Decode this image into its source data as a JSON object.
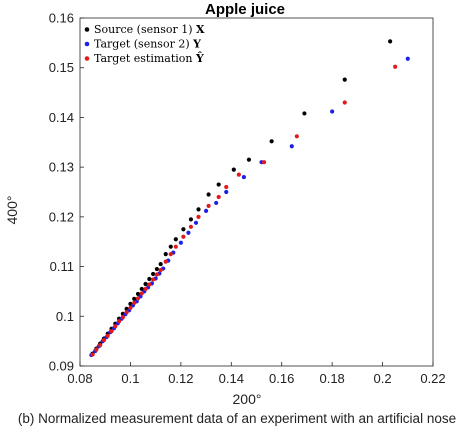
{
  "caption": "(b) Normalized measurement data of an experiment with an artificial nose",
  "chart_data": {
    "type": "scatter",
    "title": "Apple juice",
    "xlabel": "200°",
    "ylabel": "400°",
    "xlim": [
      0.08,
      0.22
    ],
    "ylim": [
      0.09,
      0.16
    ],
    "xticks": [
      "0.08",
      "0.1",
      "0.12",
      "0.14",
      "0.16",
      "0.18",
      "0.2",
      "0.22"
    ],
    "yticks": [
      "0.09",
      "0.1",
      "0.11",
      "0.12",
      "0.13",
      "0.14",
      "0.15",
      "0.16"
    ],
    "grid": false,
    "legend_position": "top-left",
    "series": [
      {
        "name": "Source (sensor 1) X",
        "label_prefix": "Source (sensor 1) ",
        "label_symbol": "X",
        "color": "#000000",
        "x": [
          0.085,
          0.0865,
          0.088,
          0.0895,
          0.091,
          0.0925,
          0.094,
          0.0955,
          0.097,
          0.0985,
          0.1,
          0.1015,
          0.103,
          0.1045,
          0.106,
          0.1075,
          0.109,
          0.1105,
          0.112,
          0.114,
          0.116,
          0.118,
          0.121,
          0.124,
          0.127,
          0.131,
          0.135,
          0.141,
          0.147,
          0.156,
          0.169,
          0.185,
          0.203
        ],
        "y": [
          0.0925,
          0.0935,
          0.0945,
          0.0955,
          0.0965,
          0.0975,
          0.0985,
          0.0995,
          0.1005,
          0.1015,
          0.1025,
          0.1035,
          0.1045,
          0.1055,
          0.1065,
          0.1075,
          0.1085,
          0.1095,
          0.1105,
          0.1125,
          0.114,
          0.1155,
          0.1175,
          0.1195,
          0.1215,
          0.1245,
          0.1265,
          0.1295,
          0.1315,
          0.1352,
          0.1408,
          0.1476,
          0.1553
        ]
      },
      {
        "name": "Target (sensor 2) Y",
        "label_prefix": "Target (sensor 2) ",
        "label_symbol": "Y",
        "color": "#1f1fe6",
        "x": [
          0.0845,
          0.086,
          0.0875,
          0.089,
          0.0905,
          0.092,
          0.0935,
          0.095,
          0.0965,
          0.098,
          0.0995,
          0.101,
          0.1025,
          0.104,
          0.1055,
          0.107,
          0.1085,
          0.11,
          0.1115,
          0.113,
          0.115,
          0.117,
          0.12,
          0.123,
          0.126,
          0.13,
          0.134,
          0.138,
          0.145,
          0.152,
          0.164,
          0.18,
          0.21
        ],
        "y": [
          0.0922,
          0.093,
          0.094,
          0.095,
          0.0958,
          0.0968,
          0.0976,
          0.0986,
          0.0995,
          0.1004,
          0.1012,
          0.1022,
          0.103,
          0.104,
          0.105,
          0.1058,
          0.1066,
          0.1076,
          0.1086,
          0.1096,
          0.1112,
          0.1128,
          0.1148,
          0.1168,
          0.1188,
          0.1212,
          0.1228,
          0.125,
          0.128,
          0.131,
          0.1342,
          0.1412,
          0.1518
        ]
      },
      {
        "name": "Target estimation Ŷ",
        "label_prefix": "Target estimation ",
        "label_symbol": "Ŷ",
        "color": "#e31a1c",
        "x": [
          0.085,
          0.0865,
          0.088,
          0.0895,
          0.091,
          0.0925,
          0.094,
          0.0955,
          0.097,
          0.0985,
          0.1,
          0.1015,
          0.103,
          0.1045,
          0.106,
          0.1075,
          0.109,
          0.1105,
          0.112,
          0.114,
          0.116,
          0.118,
          0.121,
          0.124,
          0.127,
          0.131,
          0.135,
          0.138,
          0.143,
          0.153,
          0.166,
          0.185,
          0.205
        ],
        "y": [
          0.0923,
          0.0933,
          0.0942,
          0.0952,
          0.0961,
          0.097,
          0.098,
          0.099,
          0.0998,
          0.1008,
          0.1017,
          0.1027,
          0.1036,
          0.1046,
          0.1055,
          0.1064,
          0.1074,
          0.1084,
          0.1093,
          0.111,
          0.1125,
          0.114,
          0.116,
          0.118,
          0.12,
          0.1222,
          0.124,
          0.126,
          0.1285,
          0.131,
          0.1362,
          0.143,
          0.1502
        ]
      }
    ]
  }
}
